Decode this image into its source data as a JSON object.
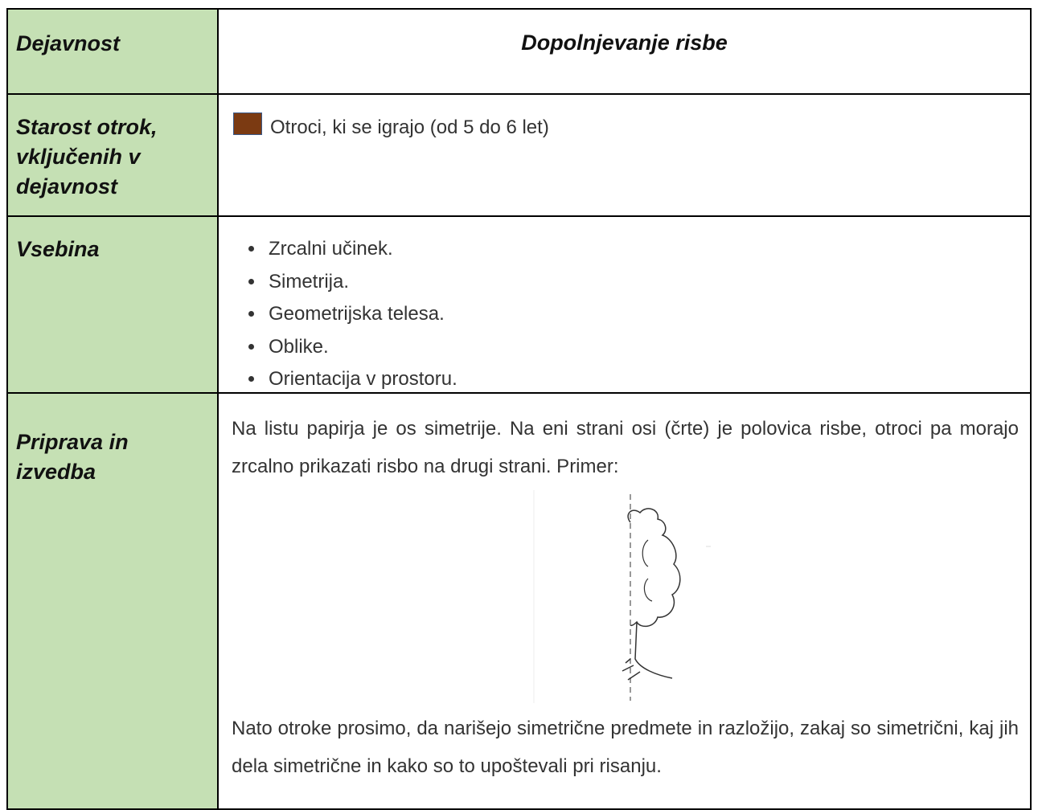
{
  "table": {
    "rows": [
      {
        "label": "Dejavnost",
        "content": "Dopolnjevanje risbe"
      },
      {
        "label": "Starost otrok, vključenih v dejavnost",
        "content": "Otroci, ki se igrajo (od 5 do 6 let)"
      },
      {
        "label": "Vsebina",
        "items": [
          "Zrcalni učinek.",
          "Simetrija.",
          "Geometrijska telesa.",
          "Oblike.",
          "Orientacija v prostoru."
        ]
      },
      {
        "label": "Priprava in izvedba",
        "paragraphs": [
          "Na listu papirja je os simetrije. Na eni strani osi (črte) je polovica risbe, otroci pa morajo zrcalno prikazati risbo na drugi strani. Primer:",
          "Nato otroke prosimo, da narišejo simetrične predmete in razložijo, zakaj so simetrični, kaj jih dela simetrične in kako so to upoštevali pri risanju."
        ]
      }
    ]
  }
}
